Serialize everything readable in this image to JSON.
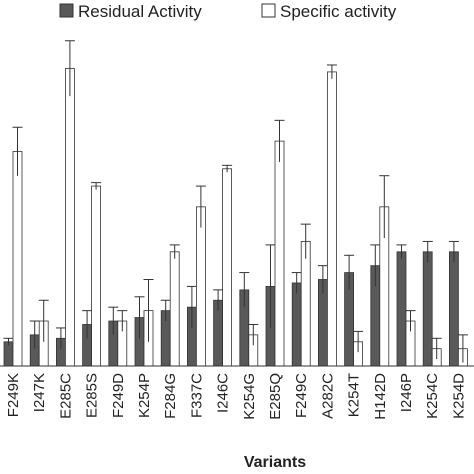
{
  "chart_data": {
    "type": "bar",
    "xlabel": "Variants",
    "ylabel": "",
    "ylim": [
      0,
      100
    ],
    "categories": [
      "F249K",
      "I247K",
      "E285C",
      "E285S",
      "F249D",
      "K254P",
      "F284G",
      "F337C",
      "I246C",
      "K254G",
      "E285Q",
      "F249C",
      "A282C",
      "K254T",
      "H142D",
      "I246P",
      "K254C",
      "K254D"
    ],
    "series": [
      {
        "name": "Residual Activity",
        "color": "#595959",
        "values": [
          7,
          9,
          8,
          12,
          13,
          14,
          16,
          17,
          19,
          22,
          23,
          24,
          25,
          27,
          29,
          33,
          33,
          33
        ],
        "errors": [
          1,
          4,
          3,
          4,
          4,
          6,
          3,
          6,
          3,
          5,
          12,
          3,
          4,
          5,
          6,
          2,
          3,
          3
        ]
      },
      {
        "name": "Specific activity",
        "color": "#ffffff",
        "values": [
          62,
          13,
          86,
          52,
          13,
          16,
          33,
          46,
          57,
          9,
          65,
          36,
          85,
          7,
          46,
          13,
          5,
          5
        ],
        "errors": [
          7,
          6,
          8,
          1,
          3,
          9,
          2,
          6,
          1,
          3,
          6,
          5,
          2,
          3,
          9,
          3,
          3,
          4
        ]
      }
    ]
  }
}
